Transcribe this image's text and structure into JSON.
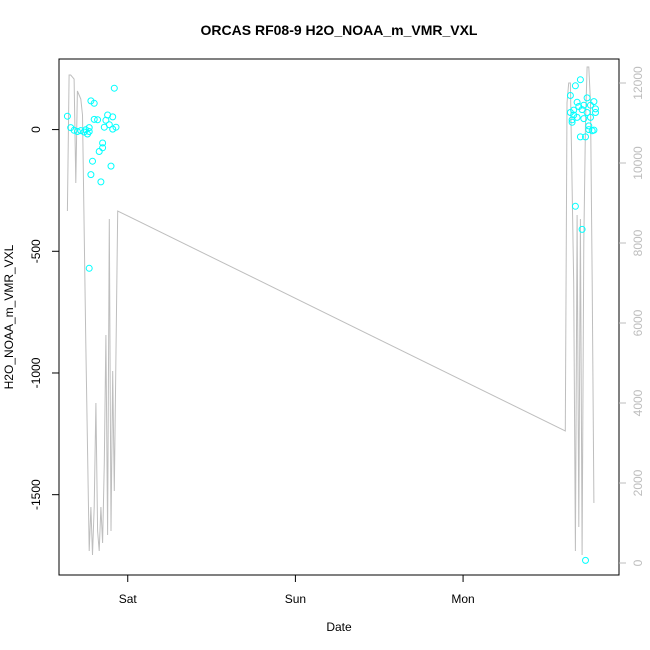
{
  "chart_data": {
    "type": "scatter",
    "title": "ORCAS RF08-9 H2O_NOAA_m_VMR_VXL",
    "xlabel": "Date",
    "ylabel": "H2O_NOAA_m_VMR_VXL",
    "x_ticks": [
      {
        "x": 1.0,
        "label": "Sat"
      },
      {
        "x": 2.0,
        "label": "Sun"
      },
      {
        "x": 3.0,
        "label": "Mon"
      }
    ],
    "xlim": [
      0.59,
      3.93
    ],
    "ylim": [
      -1830,
      290
    ],
    "y_ticks": [
      {
        "v": 0,
        "label": "0"
      },
      {
        "v": -500,
        "label": "-500"
      },
      {
        "v": -1000,
        "label": "-1000"
      },
      {
        "v": -1500,
        "label": "-1500"
      }
    ],
    "y2lim": [
      -300,
      12600
    ],
    "y2_ticks": [
      {
        "v": 0,
        "label": "0"
      },
      {
        "v": 2000,
        "label": "2000"
      },
      {
        "v": 4000,
        "label": "4000"
      },
      {
        "v": 6000,
        "label": "6000"
      },
      {
        "v": 8000,
        "label": "8000"
      },
      {
        "v": 10000,
        "label": "10000"
      },
      {
        "v": 12000,
        "label": "12000"
      }
    ],
    "grid": false,
    "colors": {
      "points": "#00ffff",
      "line": "#bebebe",
      "axis": "#000000",
      "right_axis": "#bdbdbd"
    },
    "series": [
      {
        "marker": "open-circle",
        "axis": "left",
        "points": [
          [
            0.64,
            55
          ],
          [
            0.66,
            8
          ],
          [
            0.68,
            -3
          ],
          [
            0.7,
            -8
          ],
          [
            0.72,
            -4
          ],
          [
            0.74,
            -10
          ],
          [
            0.75,
            -1
          ],
          [
            0.76,
            -18
          ],
          [
            0.77,
            -8
          ],
          [
            0.77,
            8
          ],
          [
            0.78,
            -185
          ],
          [
            0.78,
            118
          ],
          [
            0.77,
            -570
          ],
          [
            0.79,
            -130
          ],
          [
            0.8,
            108
          ],
          [
            0.8,
            42
          ],
          [
            0.82,
            40
          ],
          [
            0.83,
            -90
          ],
          [
            0.84,
            -215
          ],
          [
            0.85,
            -75
          ],
          [
            0.85,
            -55
          ],
          [
            0.86,
            10
          ],
          [
            0.87,
            38
          ],
          [
            0.88,
            60
          ],
          [
            0.89,
            20
          ],
          [
            0.9,
            -150
          ],
          [
            0.91,
            52
          ],
          [
            0.91,
            2
          ],
          [
            0.92,
            170
          ],
          [
            0.93,
            10
          ],
          [
            3.64,
            140
          ],
          [
            3.64,
            70
          ],
          [
            3.65,
            40
          ],
          [
            3.65,
            30
          ],
          [
            3.66,
            80
          ],
          [
            3.66,
            60
          ],
          [
            3.67,
            -315
          ],
          [
            3.67,
            180
          ],
          [
            3.68,
            112
          ],
          [
            3.68,
            50
          ],
          [
            3.69,
            95
          ],
          [
            3.7,
            -30
          ],
          [
            3.7,
            205
          ],
          [
            3.71,
            -410
          ],
          [
            3.71,
            82
          ],
          [
            3.72,
            100
          ],
          [
            3.72,
            45
          ],
          [
            3.73,
            -30
          ],
          [
            3.73,
            -1770
          ],
          [
            3.74,
            130
          ],
          [
            3.74,
            70
          ],
          [
            3.75,
            15
          ],
          [
            3.75,
            0
          ],
          [
            3.76,
            50
          ],
          [
            3.76,
            100
          ],
          [
            3.77,
            -5
          ],
          [
            3.78,
            -2
          ],
          [
            3.78,
            115
          ],
          [
            3.79,
            70
          ],
          [
            3.79,
            85
          ]
        ]
      },
      {
        "marker": "line",
        "axis": "right",
        "points": [
          [
            0.64,
            8800
          ],
          [
            0.65,
            12200
          ],
          [
            0.66,
            12200
          ],
          [
            0.68,
            12100
          ],
          [
            0.69,
            9500
          ],
          [
            0.7,
            11800
          ],
          [
            0.71,
            11700
          ],
          [
            0.72,
            11600
          ],
          [
            0.73,
            11200
          ],
          [
            0.75,
            5500
          ],
          [
            0.77,
            300
          ],
          [
            0.78,
            1400
          ],
          [
            0.79,
            200
          ],
          [
            0.8,
            1400
          ],
          [
            0.81,
            4000
          ],
          [
            0.82,
            800
          ],
          [
            0.83,
            300
          ],
          [
            0.84,
            1400
          ],
          [
            0.85,
            500
          ],
          [
            0.86,
            2500
          ],
          [
            0.87,
            5700
          ],
          [
            0.88,
            700
          ],
          [
            0.89,
            8600
          ],
          [
            0.9,
            800
          ],
          [
            0.91,
            4800
          ],
          [
            0.92,
            1800
          ],
          [
            0.94,
            8800
          ],
          [
            3.61,
            3300
          ],
          [
            3.62,
            11500
          ],
          [
            3.63,
            12000
          ],
          [
            3.64,
            12000
          ],
          [
            3.66,
            7000
          ],
          [
            3.67,
            300
          ],
          [
            3.68,
            8700
          ],
          [
            3.69,
            900
          ],
          [
            3.7,
            8600
          ],
          [
            3.71,
            200
          ],
          [
            3.72,
            8000
          ],
          [
            3.73,
            11000
          ],
          [
            3.74,
            12400
          ],
          [
            3.75,
            12400
          ],
          [
            3.76,
            11500
          ],
          [
            3.77,
            7000
          ],
          [
            3.78,
            1500
          ]
        ]
      }
    ]
  }
}
